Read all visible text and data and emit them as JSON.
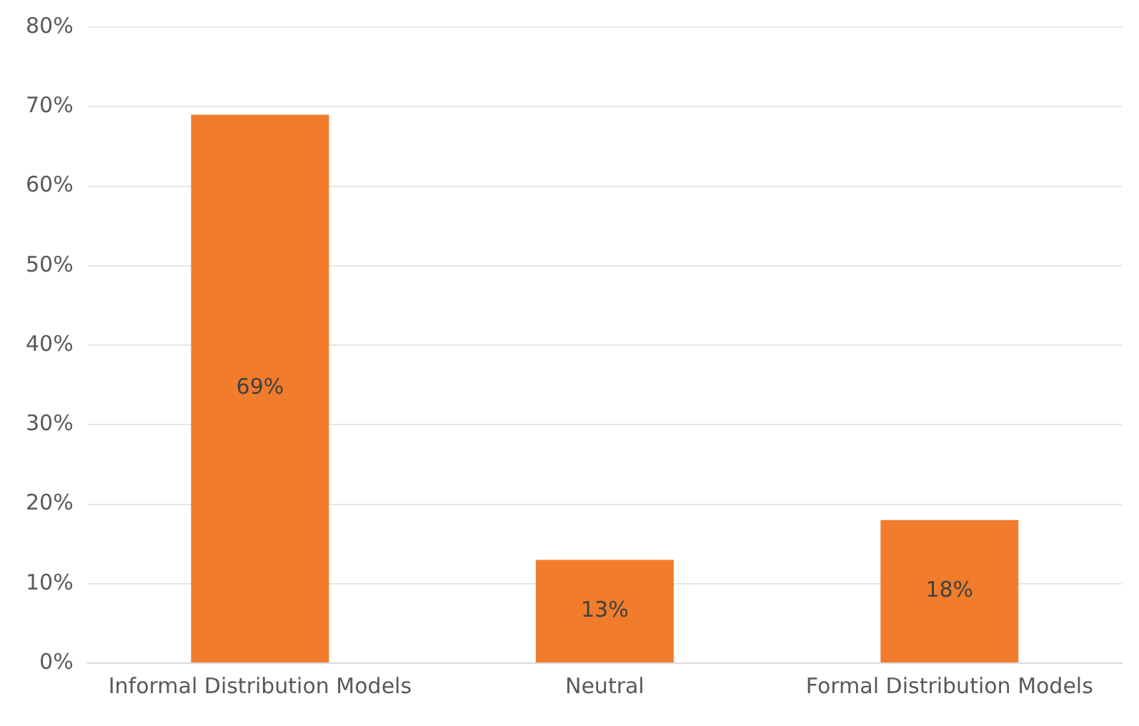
{
  "chart_data": {
    "type": "bar",
    "categories": [
      "Informal Distribution Models",
      "Neutral",
      "Formal Distribution Models"
    ],
    "values": [
      69,
      13,
      18
    ],
    "value_labels": [
      "69%",
      "13%",
      "18%"
    ],
    "color": "#f07c2c",
    "ylim": [
      0,
      80
    ],
    "yticks": [
      {
        "value": 0,
        "label": "0%"
      },
      {
        "value": 10,
        "label": "10%"
      },
      {
        "value": 20,
        "label": "20%"
      },
      {
        "value": 30,
        "label": "30%"
      },
      {
        "value": 40,
        "label": "40%"
      },
      {
        "value": 50,
        "label": "50%"
      },
      {
        "value": 60,
        "label": "60%"
      },
      {
        "value": 70,
        "label": "70%"
      },
      {
        "value": 80,
        "label": "80%"
      }
    ],
    "grid": "y",
    "legend": false
  }
}
